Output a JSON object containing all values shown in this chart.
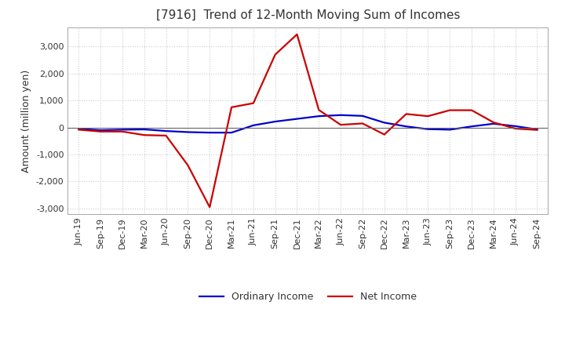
{
  "title": "[7916]  Trend of 12-Month Moving Sum of Incomes",
  "ylabel": "Amount (million yen)",
  "ylim": [
    -3200,
    3700
  ],
  "yticks": [
    -3000,
    -2000,
    -1000,
    0,
    1000,
    2000,
    3000
  ],
  "background_color": "#ffffff",
  "plot_bg_color": "#ffffff",
  "grid_color": "#cccccc",
  "labels": [
    "Jun-19",
    "Sep-19",
    "Dec-19",
    "Mar-20",
    "Jun-20",
    "Sep-20",
    "Dec-20",
    "Mar-21",
    "Jun-21",
    "Sep-21",
    "Dec-21",
    "Mar-22",
    "Jun-22",
    "Sep-22",
    "Dec-22",
    "Mar-23",
    "Jun-23",
    "Sep-23",
    "Dec-23",
    "Mar-24",
    "Jun-24",
    "Sep-24"
  ],
  "ordinary_income": [
    -50,
    -100,
    -80,
    -70,
    -130,
    -170,
    -190,
    -190,
    80,
    220,
    320,
    420,
    460,
    430,
    180,
    40,
    -60,
    -80,
    40,
    140,
    50,
    -70
  ],
  "net_income": [
    -80,
    -150,
    -150,
    -280,
    -300,
    -1400,
    -2950,
    750,
    900,
    2700,
    3450,
    650,
    100,
    150,
    -260,
    500,
    420,
    640,
    640,
    190,
    -40,
    -90
  ],
  "ordinary_color": "#0000cc",
  "net_color": "#cc0000",
  "line_width": 1.6,
  "legend_ordinary": "Ordinary Income",
  "legend_net": "Net Income",
  "title_fontsize": 11,
  "axis_label_fontsize": 9,
  "tick_fontsize": 8,
  "legend_fontsize": 9
}
